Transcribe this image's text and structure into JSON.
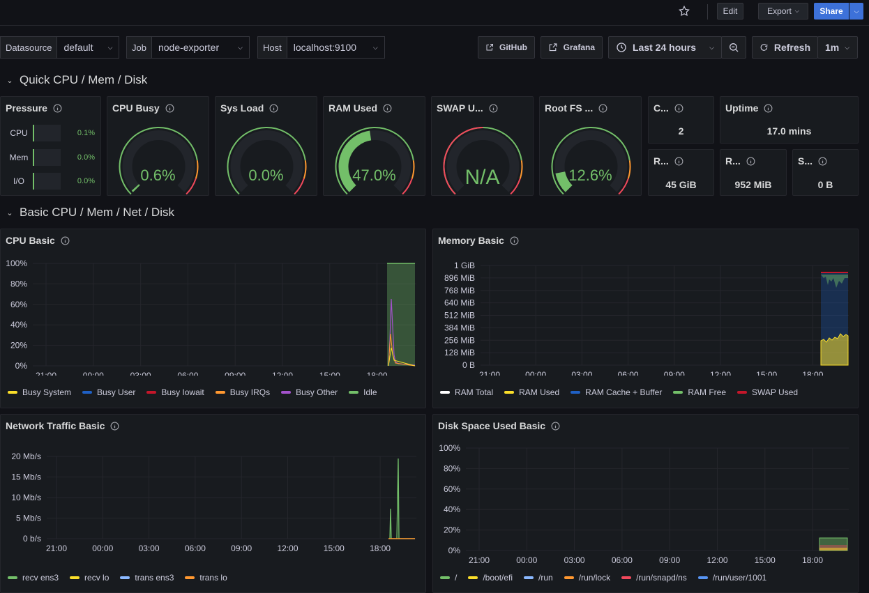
{
  "toolbar": {
    "edit": "Edit",
    "export": "Export",
    "share": "Share"
  },
  "vars": [
    {
      "label": "Datasource",
      "value": "default"
    },
    {
      "label": "Job",
      "value": "node-exporter"
    },
    {
      "label": "Host",
      "value": "localhost:9100"
    }
  ],
  "links": {
    "github": "GitHub",
    "grafana": "Grafana"
  },
  "time": {
    "range": "Last 24 hours",
    "refresh": "Refresh",
    "interval": "1m"
  },
  "sections": {
    "quick": "Quick CPU / Mem / Disk",
    "basic": "Basic CPU / Mem / Net / Disk"
  },
  "pressure": {
    "title": "Pressure",
    "rows": [
      {
        "label": "CPU",
        "value": "0.1%",
        "level": 0.001
      },
      {
        "label": "Mem",
        "value": "0.0%",
        "level": 0
      },
      {
        "label": "I/O",
        "value": "0.0%",
        "level": 0
      }
    ]
  },
  "gauges": [
    {
      "title": "CPU Busy",
      "value": "0.6%",
      "fraction": 0.006,
      "color": "#73bf69"
    },
    {
      "title": "Sys Load",
      "value": "0.0%",
      "fraction": 0.0,
      "color": "#73bf69"
    },
    {
      "title": "RAM Used",
      "value": "47.0%",
      "fraction": 0.47,
      "color": "#73bf69"
    },
    {
      "title": "SWAP U...",
      "value": "N/A",
      "fraction": 0,
      "color": "#73bf69"
    },
    {
      "title": "Root FS ...",
      "value": "12.6%",
      "fraction": 0.126,
      "color": "#73bf69"
    }
  ],
  "stats": [
    {
      "title": "C...",
      "value": "2"
    },
    {
      "title": "Uptime",
      "value": "17.0 mins"
    },
    {
      "title": "R...",
      "value": "45 GiB"
    },
    {
      "title": "R...",
      "value": "952 MiB"
    },
    {
      "title": "S...",
      "value": "0 B"
    }
  ],
  "colors": {
    "green": "#73bf69",
    "yellow": "#fade2a",
    "red": "#f2495c",
    "orange": "#ff9830",
    "blue": "#1f60c4",
    "purple": "#a352cc",
    "share": "#3d71d9"
  },
  "x_ticks": [
    "21:00",
    "00:00",
    "03:00",
    "06:00",
    "09:00",
    "12:00",
    "15:00",
    "18:00"
  ],
  "cpu": {
    "title": "CPU Basic",
    "y_ticks": [
      "100%",
      "80%",
      "60%",
      "40%",
      "20%",
      "0%"
    ],
    "legend": [
      {
        "name": "Busy System",
        "color": "#fade2a"
      },
      {
        "name": "Busy User",
        "color": "#1f60c4"
      },
      {
        "name": "Busy Iowait",
        "color": "#c4162a"
      },
      {
        "name": "Busy IRQs",
        "color": "#ff9830"
      },
      {
        "name": "Busy Other",
        "color": "#a352cc"
      },
      {
        "name": "Idle",
        "color": "#73bf69"
      }
    ]
  },
  "mem": {
    "title": "Memory Basic",
    "y_ticks": [
      "1 GiB",
      "896 MiB",
      "768 MiB",
      "640 MiB",
      "512 MiB",
      "384 MiB",
      "256 MiB",
      "128 MiB",
      "0 B"
    ],
    "legend": [
      {
        "name": "RAM Total",
        "color": "#ffffff"
      },
      {
        "name": "RAM Used",
        "color": "#fade2a"
      },
      {
        "name": "RAM Cache + Buffer",
        "color": "#1f60c4"
      },
      {
        "name": "RAM Free",
        "color": "#73bf69"
      },
      {
        "name": "SWAP Used",
        "color": "#c4162a"
      }
    ]
  },
  "net": {
    "title": "Network Traffic Basic",
    "y_ticks": [
      "20 Mb/s",
      "15 Mb/s",
      "10 Mb/s",
      "5 Mb/s",
      "0 b/s"
    ],
    "legend": [
      {
        "name": "recv ens3",
        "color": "#73bf69"
      },
      {
        "name": "recv lo",
        "color": "#fade2a"
      },
      {
        "name": "trans ens3",
        "color": "#8ab8ff"
      },
      {
        "name": "trans lo",
        "color": "#ff9830"
      }
    ]
  },
  "disk": {
    "title": "Disk Space Used Basic",
    "y_ticks": [
      "100%",
      "80%",
      "60%",
      "40%",
      "20%",
      "0%"
    ],
    "legend": [
      {
        "name": "/",
        "color": "#73bf69"
      },
      {
        "name": "/boot/efi",
        "color": "#fade2a"
      },
      {
        "name": "/run",
        "color": "#8ab8ff"
      },
      {
        "name": "/run/lock",
        "color": "#ff9830"
      },
      {
        "name": "/run/snapd/ns",
        "color": "#f2495c"
      },
      {
        "name": "/run/user/1001",
        "color": "#5794f2"
      }
    ]
  }
}
